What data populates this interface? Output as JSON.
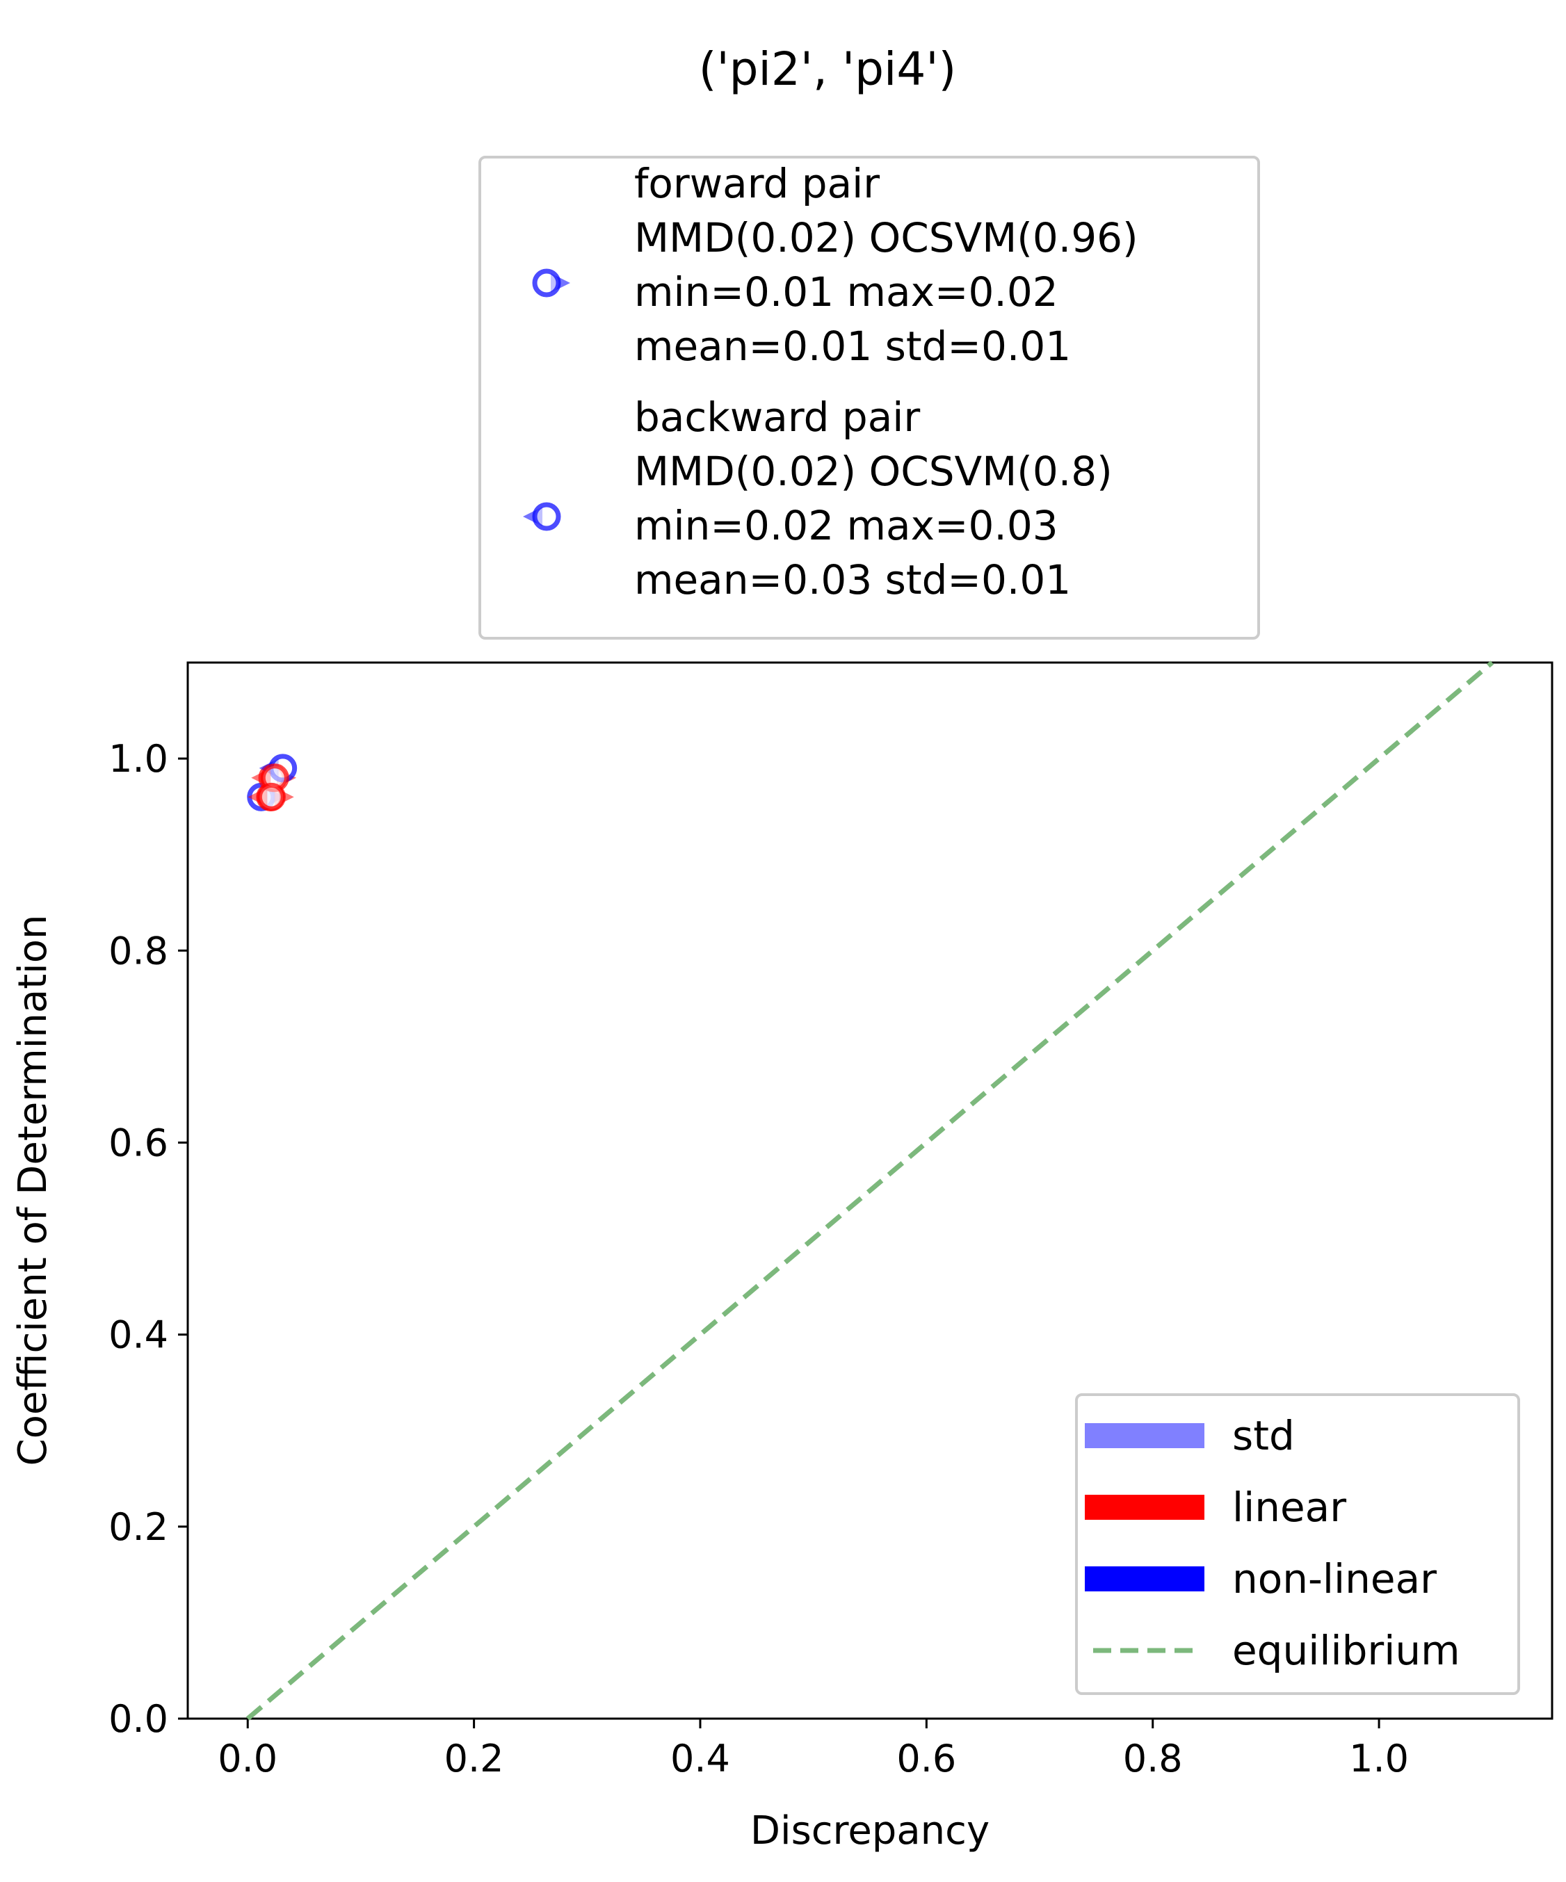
{
  "chart_data": {
    "type": "scatter",
    "title": "('pi2', 'pi4')",
    "xlabel": "Discrepancy",
    "ylabel": "Coefficient of Determination",
    "xlim": [
      -0.053,
      1.153
    ],
    "ylim": [
      0.0,
      1.1
    ],
    "xticks": [
      0.0,
      0.2,
      0.4,
      0.6,
      0.8,
      1.0
    ],
    "yticks": [
      0.0,
      0.2,
      0.4,
      0.6,
      0.8,
      1.0
    ],
    "xtick_labels": [
      "0.0",
      "0.2",
      "0.4",
      "0.6",
      "0.8",
      "1.0"
    ],
    "ytick_labels": [
      "0.0",
      "0.2",
      "0.4",
      "0.6",
      "0.8",
      "1.0"
    ],
    "grid": false,
    "series": [
      {
        "name": "forward pair",
        "legend_text": [
          "forward pair",
          "MMD(0.02) OCSVM(0.96)",
          "min=0.01 max=0.02",
          "mean=0.01 std=0.01"
        ],
        "marker": "circle-triangle-right",
        "points": [
          {
            "x": 0.012,
            "y": 0.96,
            "model": "non-linear"
          },
          {
            "x": 0.02,
            "y": 0.96,
            "model": "linear"
          },
          {
            "x": 0.022,
            "y": 0.98,
            "model": "linear"
          }
        ]
      },
      {
        "name": "backward pair",
        "legend_text": [
          "backward pair",
          "MMD(0.02) OCSVM(0.8)",
          "min=0.02 max=0.03",
          "mean=0.03 std=0.01"
        ],
        "marker": "circle-triangle-left",
        "points": [
          {
            "x": 0.031,
            "y": 0.99,
            "model": "non-linear"
          },
          {
            "x": 0.024,
            "y": 0.98,
            "model": "linear"
          },
          {
            "x": 0.021,
            "y": 0.96,
            "model": "linear"
          }
        ]
      }
    ],
    "equilibrium_line": {
      "x": [
        0.0,
        1.1
      ],
      "y": [
        0.0,
        1.1
      ]
    },
    "top_legend_placement": "above plot, center",
    "bottom_legend_placement": "lower right",
    "bottom_legend": [
      {
        "label": "std",
        "style": "band",
        "color": "#8080ff"
      },
      {
        "label": "linear",
        "style": "band",
        "color": "#ff0000"
      },
      {
        "label": "non-linear",
        "style": "band",
        "color": "#0000ff"
      },
      {
        "label": "equilibrium",
        "style": "dashed",
        "color": "#7cb87c"
      }
    ],
    "colors": {
      "linear": "#ff0000",
      "non_linear": "#0000ff",
      "std": "#8080ff",
      "equilibrium": "#7cb87c"
    }
  }
}
